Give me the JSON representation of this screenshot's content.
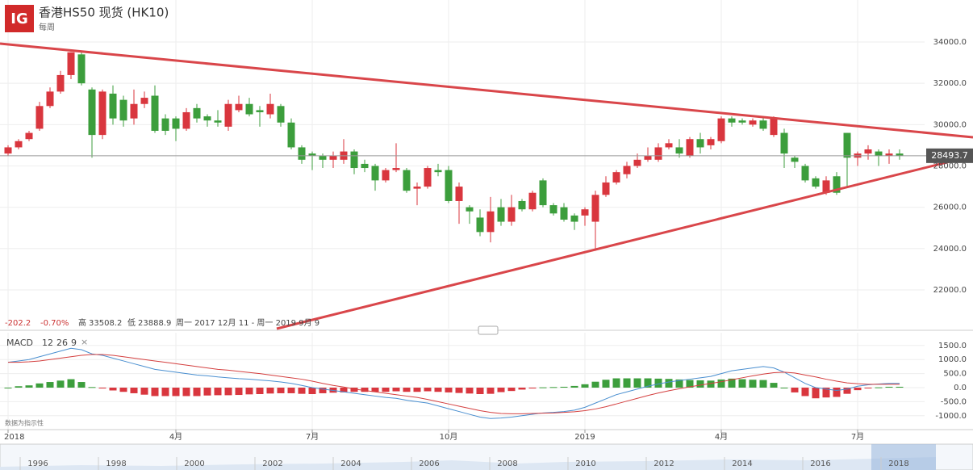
{
  "chart_data": {
    "type": "candlestick",
    "title": "香港HS50 现货 (HK10)",
    "subtitle": "每周",
    "logo": "IG",
    "stats": {
      "change": -202.2,
      "change_pct": "-0.70%",
      "high_label": "高",
      "high": 33508.2,
      "low_label": "低",
      "low": 23888.9,
      "range": "周一 2017 12月 11 - 周一 2019 9月 9"
    },
    "note": "数据为指示性",
    "up_color": "#d9363e",
    "down_color": "#3c9e3c",
    "categories": [
      "2018",
      null,
      null,
      null,
      null,
      null,
      null,
      null,
      null,
      null,
      null,
      null,
      null,
      null,
      null,
      null,
      "4月",
      null,
      null,
      null,
      null,
      null,
      null,
      null,
      null,
      null,
      null,
      null,
      null,
      "7月",
      null,
      null,
      null,
      null,
      null,
      null,
      null,
      null,
      null,
      null,
      null,
      null,
      "10月",
      null,
      null,
      null,
      null,
      null,
      null,
      null,
      null,
      null,
      null,
      null,
      null,
      "2019",
      null,
      null,
      null,
      null,
      null,
      null,
      null,
      null,
      null,
      null,
      null,
      null,
      "4月",
      null,
      null,
      null,
      null,
      null,
      null,
      null,
      null,
      null,
      null,
      null,
      null,
      "7月",
      null,
      null,
      null,
      null
    ],
    "ohlc": {
      "open": [
        28600,
        28900,
        29300,
        29800,
        30900,
        31600,
        32400,
        33400,
        31700,
        29500,
        31500,
        31200,
        30300,
        31000,
        31400,
        30300,
        30300,
        29800,
        30800,
        30400,
        30200,
        29900,
        30700,
        31000,
        30700,
        30500,
        30900,
        30100,
        28900,
        28600,
        28500,
        28300,
        28300,
        28700,
        28100,
        28000,
        27300,
        27800,
        27800,
        26900,
        27000,
        27800,
        27800,
        26300,
        26000,
        25500,
        24800,
        26000,
        25300,
        26300,
        25900,
        27300,
        26100,
        26000,
        25600,
        25600,
        25300,
        26600,
        27200,
        27600,
        28000,
        28300,
        28300,
        28900,
        28900,
        28500,
        29300,
        29000,
        29200,
        30300,
        30200,
        30000,
        30200,
        29500,
        29600,
        28400,
        28000,
        27400,
        26700,
        27500,
        29600,
        28400,
        28600,
        28700,
        28500,
        28600
      ],
      "high": [
        29000,
        29300,
        29700,
        31100,
        31800,
        32600,
        33500,
        33508.2,
        31800,
        31700,
        31900,
        31400,
        31700,
        31600,
        31900,
        30500,
        30400,
        30800,
        31000,
        30500,
        30700,
        31200,
        31400,
        31300,
        30900,
        31500,
        31000,
        30300,
        29000,
        28700,
        28600,
        28700,
        29300,
        28800,
        28300,
        28100,
        27900,
        29100,
        27900,
        27200,
        28000,
        28100,
        28000,
        27200,
        26100,
        25900,
        26500,
        26400,
        26600,
        26400,
        26800,
        27400,
        26200,
        26200,
        25700,
        26000,
        26800,
        27500,
        27800,
        28200,
        28600,
        28900,
        29100,
        29300,
        29300,
        29400,
        29600,
        29400,
        30400,
        30400,
        30300,
        30300,
        30400,
        30400,
        29800,
        28500,
        28100,
        27500,
        27500,
        27700,
        29600,
        28700,
        29000,
        28800,
        28800,
        28800
      ],
      "low": [
        28500,
        28800,
        29200,
        29700,
        30800,
        31500,
        32200,
        31900,
        28400,
        29300,
        30000,
        29900,
        30000,
        30800,
        29600,
        29500,
        29200,
        29700,
        30100,
        29900,
        29900,
        29700,
        30600,
        30400,
        29900,
        30300,
        29900,
        28800,
        28100,
        27800,
        27900,
        27900,
        28100,
        27600,
        27700,
        26800,
        27200,
        27700,
        26700,
        26100,
        26900,
        27500,
        26200,
        25200,
        25200,
        24600,
        24300,
        25100,
        25100,
        25800,
        25800,
        26000,
        25600,
        25300,
        24900,
        25100,
        23888.9,
        26500,
        27100,
        27400,
        27900,
        28200,
        28200,
        28800,
        28400,
        28400,
        28600,
        28800,
        29100,
        29900,
        30000,
        29900,
        29700,
        29400,
        27900,
        27900,
        27200,
        26900,
        26600,
        26600,
        27000,
        28000,
        28300,
        28000,
        28100,
        28300
      ],
      "close": [
        28900,
        29200,
        29600,
        30900,
        31600,
        32400,
        33500,
        32000,
        29500,
        31600,
        30300,
        30200,
        31000,
        31300,
        29700,
        29700,
        29800,
        30600,
        30300,
        30200,
        30100,
        31000,
        31000,
        30500,
        30600,
        31000,
        30100,
        28900,
        28300,
        28500,
        28300,
        28500,
        28700,
        27900,
        27900,
        27300,
        27800,
        27900,
        26800,
        27000,
        27900,
        27700,
        26300,
        27000,
        25800,
        24800,
        25800,
        25300,
        26000,
        25900,
        26700,
        26100,
        25700,
        25400,
        25300,
        25900,
        26600,
        27200,
        27700,
        28000,
        28300,
        28500,
        28900,
        29100,
        28600,
        29300,
        28900,
        29300,
        30300,
        30100,
        30100,
        30200,
        29800,
        30300,
        28600,
        28200,
        27300,
        27000,
        27300,
        26700,
        28400,
        28600,
        28800,
        28500,
        28600,
        28493.7
      ]
    },
    "last": 28493.7,
    "ylim": [
      20200,
      34860
    ],
    "yticks": [
      {
        "value": 22000,
        "label": "22000.0"
      },
      {
        "value": 24000,
        "label": "24000.0"
      },
      {
        "value": 26000,
        "label": "26000.0"
      },
      {
        "value": 28000,
        "label": "28000.0"
      },
      {
        "value": 30000,
        "label": "30000.0"
      },
      {
        "value": 32000,
        "label": "32000.0"
      },
      {
        "value": 34000,
        "label": "34000.0"
      }
    ],
    "grid": true,
    "macd": {
      "name": "MACD",
      "params": [
        12,
        26,
        9
      ],
      "ylim": [
        -1437,
        1868
      ],
      "yticks": [
        {
          "value": -1000,
          "label": "-1000.0"
        },
        {
          "value": -500,
          "label": "-500.0"
        },
        {
          "value": 0,
          "label": "0.0"
        },
        {
          "value": 500,
          "label": "500.0"
        },
        {
          "value": 1000,
          "label": "1000.0"
        },
        {
          "value": 1500,
          "label": "1500.0"
        }
      ],
      "positive_color": "#3c9e3c",
      "negative_color": "#d9363e",
      "histogram": [
        0,
        50,
        80,
        150,
        200,
        250,
        300,
        200,
        20,
        -30,
        -100,
        -150,
        -200,
        -250,
        -300,
        -300,
        -300,
        -300,
        -300,
        -280,
        -270,
        -270,
        -260,
        -240,
        -230,
        -210,
        -200,
        -200,
        -220,
        -230,
        -200,
        -180,
        -170,
        -150,
        -150,
        -150,
        -150,
        -130,
        -150,
        -150,
        -130,
        -150,
        -170,
        -190,
        -210,
        -230,
        -220,
        -160,
        -120,
        -70,
        -30,
        10,
        20,
        30,
        60,
        120,
        210,
        280,
        330,
        330,
        330,
        330,
        320,
        310,
        290,
        270,
        260,
        250,
        290,
        320,
        300,
        280,
        270,
        170,
        0,
        -170,
        -300,
        -380,
        -350,
        -330,
        -220,
        -90,
        -20,
        10,
        30,
        30
      ],
      "lines": [
        {
          "color": "#4a8fd0",
          "values": [
            900,
            950,
            1000,
            1100,
            1200,
            1300,
            1400,
            1350,
            1200,
            1150,
            1050,
            950,
            850,
            750,
            650,
            600,
            550,
            500,
            450,
            420,
            380,
            350,
            320,
            300,
            270,
            240,
            200,
            150,
            80,
            0,
            -50,
            -100,
            -150,
            -200,
            -250,
            -300,
            -350,
            -380,
            -450,
            -500,
            -550,
            -650,
            -750,
            -850,
            -950,
            -1050,
            -1100,
            -1080,
            -1050,
            -1000,
            -950,
            -900,
            -880,
            -850,
            -800,
            -700,
            -550,
            -400,
            -250,
            -150,
            -50,
            50,
            130,
            200,
            250,
            300,
            350,
            400,
            500,
            600,
            650,
            700,
            750,
            700,
            550,
            350,
            150,
            0,
            -50,
            -100,
            -50,
            50,
            100,
            130,
            150,
            150
          ]
        },
        {
          "color": "#d44040",
          "values": [
            900,
            900,
            920,
            950,
            1000,
            1050,
            1100,
            1150,
            1180,
            1180,
            1150,
            1100,
            1050,
            1000,
            950,
            900,
            850,
            800,
            750,
            700,
            650,
            620,
            580,
            540,
            500,
            450,
            400,
            350,
            300,
            230,
            150,
            80,
            20,
            -50,
            -100,
            -150,
            -200,
            -250,
            -300,
            -350,
            -420,
            -500,
            -580,
            -660,
            -740,
            -820,
            -880,
            -920,
            -930,
            -930,
            -920,
            -910,
            -900,
            -880,
            -860,
            -820,
            -760,
            -680,
            -580,
            -480,
            -380,
            -280,
            -190,
            -110,
            -40,
            30,
            90,
            150,
            210,
            280,
            350,
            420,
            480,
            530,
            550,
            520,
            450,
            380,
            300,
            230,
            170,
            140,
            120,
            120,
            120,
            120
          ]
        }
      ]
    },
    "navigator": [
      "1996",
      "1998",
      "2000",
      "2002",
      "2004",
      "2006",
      "2008",
      "2010",
      "2012",
      "2014",
      "2016",
      "2018"
    ]
  }
}
